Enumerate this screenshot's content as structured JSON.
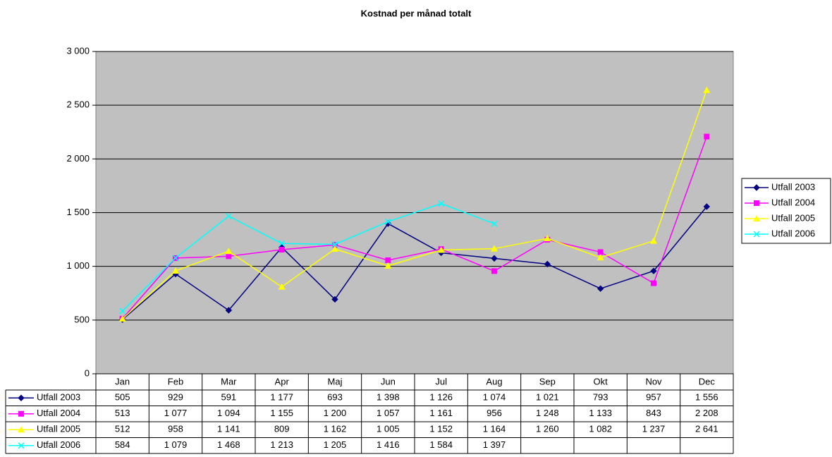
{
  "chart_data": {
    "type": "line",
    "title": "Kostnad per månad totalt",
    "categories": [
      "Jan",
      "Feb",
      "Mar",
      "Apr",
      "Maj",
      "Jun",
      "Jul",
      "Aug",
      "Sep",
      "Okt",
      "Nov",
      "Dec"
    ],
    "series": [
      {
        "name": "Utfall 2003",
        "color": "#000080",
        "marker": "diamond",
        "values": [
          505,
          929,
          591,
          1177,
          693,
          1398,
          1126,
          1074,
          1021,
          793,
          957,
          1556
        ],
        "value_labels": [
          "505",
          "929",
          "591",
          "1 177",
          "693",
          "1 398",
          "1 126",
          "1 074",
          "1 021",
          "793",
          "957",
          "1 556"
        ]
      },
      {
        "name": "Utfall 2004",
        "color": "#FF00FF",
        "marker": "square",
        "values": [
          513,
          1077,
          1094,
          1155,
          1200,
          1057,
          1161,
          956,
          1248,
          1133,
          843,
          2208
        ],
        "value_labels": [
          "513",
          "1 077",
          "1 094",
          "1 155",
          "1 200",
          "1 057",
          "1 161",
          "956",
          "1 248",
          "1 133",
          "843",
          "2 208"
        ]
      },
      {
        "name": "Utfall 2005",
        "color": "#FFFF00",
        "marker": "triangle",
        "values": [
          512,
          958,
          1141,
          809,
          1162,
          1005,
          1152,
          1164,
          1260,
          1082,
          1237,
          2641
        ],
        "value_labels": [
          "512",
          "958",
          "1 141",
          "809",
          "1 162",
          "1 005",
          "1 152",
          "1 164",
          "1 260",
          "1 082",
          "1 237",
          "2 641"
        ]
      },
      {
        "name": "Utfall 2006",
        "color": "#00FFFF",
        "marker": "cross",
        "values": [
          584,
          1079,
          1468,
          1213,
          1205,
          1416,
          1584,
          1397,
          null,
          null,
          null,
          null
        ],
        "value_labels": [
          "584",
          "1 079",
          "1 468",
          "1 213",
          "1 205",
          "1 416",
          "1 584",
          "1 397",
          null,
          null,
          null,
          null
        ]
      }
    ],
    "ylim": [
      0,
      3000
    ],
    "yticks": [
      0,
      500,
      {
        "value": 1000,
        "label": "1 000"
      },
      {
        "value": 1500,
        "label": "1 500"
      },
      {
        "value": 2000,
        "label": "2 000"
      },
      {
        "value": 2500,
        "label": "2 500"
      },
      {
        "value": 3000,
        "label": "3 000"
      }
    ],
    "grid": true,
    "legend": "right"
  }
}
